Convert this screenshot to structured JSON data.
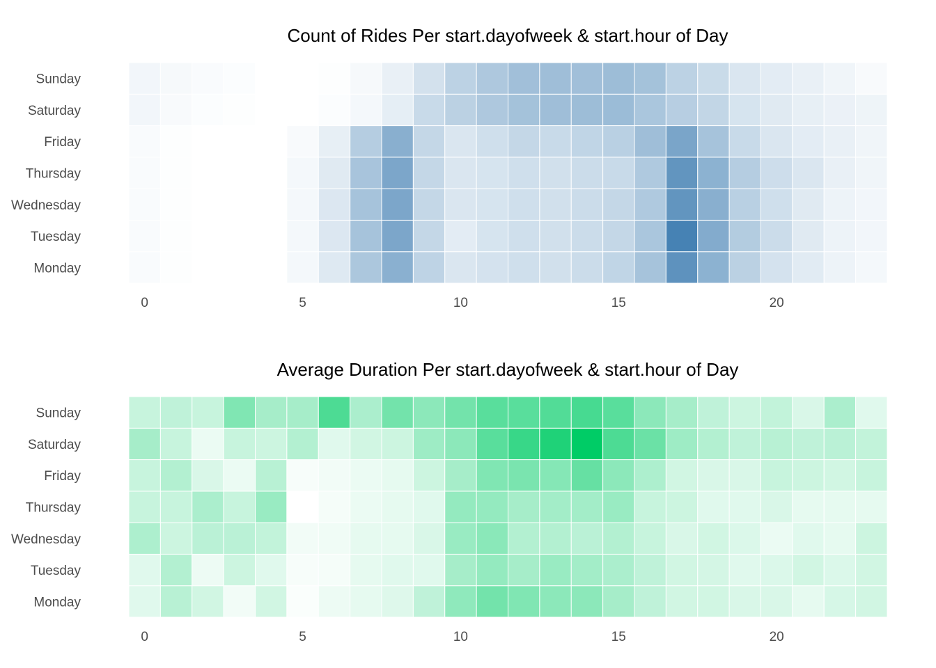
{
  "chart_data": [
    {
      "type": "heatmap",
      "title": "Count of Rides Per start.dayofweek & start.hour of Day",
      "xlabel": "",
      "ylabel": "",
      "x": [
        0,
        1,
        2,
        3,
        4,
        5,
        6,
        7,
        8,
        9,
        10,
        11,
        12,
        13,
        14,
        15,
        16,
        17,
        18,
        19,
        20,
        21,
        22,
        23
      ],
      "x_ticks": [
        0,
        5,
        10,
        15,
        20
      ],
      "y": [
        "Monday",
        "Tuesday",
        "Wednesday",
        "Thursday",
        "Friday",
        "Saturday",
        "Sunday"
      ],
      "value_range": [
        0,
        1
      ],
      "color_low": "#ffffff",
      "color_high": "#4682b4",
      "legend": "none",
      "grid": false,
      "values": [
        [
          0.03,
          0.01,
          0.0,
          0.0,
          0.0,
          0.06,
          0.18,
          0.45,
          0.63,
          0.35,
          0.2,
          0.23,
          0.26,
          0.25,
          0.28,
          0.34,
          0.48,
          0.87,
          0.62,
          0.37,
          0.23,
          0.16,
          0.1,
          0.06
        ],
        [
          0.03,
          0.01,
          0.0,
          0.0,
          0.0,
          0.06,
          0.19,
          0.48,
          0.71,
          0.32,
          0.15,
          0.22,
          0.26,
          0.25,
          0.28,
          0.32,
          0.46,
          1.0,
          0.67,
          0.41,
          0.28,
          0.17,
          0.1,
          0.07
        ],
        [
          0.03,
          0.01,
          0.0,
          0.0,
          0.0,
          0.06,
          0.19,
          0.48,
          0.71,
          0.32,
          0.2,
          0.22,
          0.26,
          0.25,
          0.28,
          0.32,
          0.43,
          0.85,
          0.64,
          0.38,
          0.26,
          0.17,
          0.1,
          0.07
        ],
        [
          0.03,
          0.01,
          0.0,
          0.0,
          0.0,
          0.06,
          0.17,
          0.47,
          0.71,
          0.32,
          0.2,
          0.22,
          0.26,
          0.25,
          0.28,
          0.3,
          0.43,
          0.85,
          0.62,
          0.4,
          0.27,
          0.2,
          0.12,
          0.08
        ],
        [
          0.03,
          0.01,
          0.0,
          0.0,
          0.0,
          0.04,
          0.13,
          0.4,
          0.64,
          0.32,
          0.2,
          0.26,
          0.32,
          0.3,
          0.34,
          0.38,
          0.52,
          0.72,
          0.48,
          0.3,
          0.2,
          0.15,
          0.12,
          0.08
        ],
        [
          0.07,
          0.04,
          0.02,
          0.01,
          0.0,
          0.0,
          0.02,
          0.06,
          0.14,
          0.3,
          0.37,
          0.44,
          0.49,
          0.52,
          0.53,
          0.54,
          0.46,
          0.39,
          0.33,
          0.22,
          0.17,
          0.13,
          0.11,
          0.09
        ],
        [
          0.07,
          0.05,
          0.03,
          0.02,
          0.0,
          0.0,
          0.01,
          0.05,
          0.12,
          0.24,
          0.36,
          0.44,
          0.51,
          0.52,
          0.51,
          0.53,
          0.49,
          0.36,
          0.29,
          0.2,
          0.15,
          0.12,
          0.08,
          0.04
        ]
      ]
    },
    {
      "type": "heatmap",
      "title": "Average Duration Per start.dayofweek & start.hour of Day",
      "xlabel": "",
      "ylabel": "",
      "x": [
        0,
        1,
        2,
        3,
        4,
        5,
        6,
        7,
        8,
        9,
        10,
        11,
        12,
        13,
        14,
        15,
        16,
        17,
        18,
        19,
        20,
        21,
        22,
        23
      ],
      "x_ticks": [
        0,
        5,
        10,
        15,
        20
      ],
      "y": [
        "Monday",
        "Tuesday",
        "Wednesday",
        "Thursday",
        "Friday",
        "Saturday",
        "Sunday"
      ],
      "value_range": [
        0,
        1
      ],
      "color_low": "#ffffff",
      "color_high": "#00cc66",
      "legend": "none",
      "grid": false,
      "values": [
        [
          0.12,
          0.28,
          0.18,
          0.05,
          0.18,
          0.02,
          0.07,
          0.1,
          0.13,
          0.25,
          0.44,
          0.55,
          0.5,
          0.45,
          0.45,
          0.35,
          0.25,
          0.18,
          0.18,
          0.15,
          0.15,
          0.1,
          0.16,
          0.18
        ],
        [
          0.12,
          0.3,
          0.07,
          0.2,
          0.12,
          0.03,
          0.04,
          0.1,
          0.12,
          0.12,
          0.35,
          0.42,
          0.35,
          0.4,
          0.36,
          0.33,
          0.25,
          0.18,
          0.17,
          0.12,
          0.14,
          0.18,
          0.14,
          0.18
        ],
        [
          0.32,
          0.2,
          0.27,
          0.27,
          0.24,
          0.05,
          0.06,
          0.1,
          0.1,
          0.15,
          0.4,
          0.46,
          0.3,
          0.3,
          0.27,
          0.3,
          0.22,
          0.15,
          0.18,
          0.14,
          0.08,
          0.12,
          0.1,
          0.2
        ],
        [
          0.22,
          0.22,
          0.33,
          0.22,
          0.4,
          0.0,
          0.04,
          0.08,
          0.1,
          0.12,
          0.42,
          0.42,
          0.35,
          0.36,
          0.36,
          0.4,
          0.22,
          0.2,
          0.12,
          0.12,
          0.15,
          0.1,
          0.1,
          0.1
        ],
        [
          0.22,
          0.3,
          0.15,
          0.08,
          0.28,
          0.03,
          0.05,
          0.08,
          0.1,
          0.2,
          0.35,
          0.5,
          0.52,
          0.48,
          0.6,
          0.45,
          0.32,
          0.18,
          0.15,
          0.15,
          0.22,
          0.2,
          0.18,
          0.22
        ],
        [
          0.35,
          0.22,
          0.08,
          0.22,
          0.2,
          0.3,
          0.12,
          0.18,
          0.2,
          0.38,
          0.45,
          0.65,
          0.78,
          0.88,
          1.0,
          0.7,
          0.58,
          0.38,
          0.3,
          0.25,
          0.28,
          0.25,
          0.27,
          0.24
        ],
        [
          0.22,
          0.25,
          0.22,
          0.5,
          0.35,
          0.35,
          0.7,
          0.33,
          0.55,
          0.45,
          0.55,
          0.65,
          0.65,
          0.68,
          0.72,
          0.65,
          0.45,
          0.35,
          0.25,
          0.2,
          0.24,
          0.15,
          0.33,
          0.12
        ]
      ]
    }
  ]
}
